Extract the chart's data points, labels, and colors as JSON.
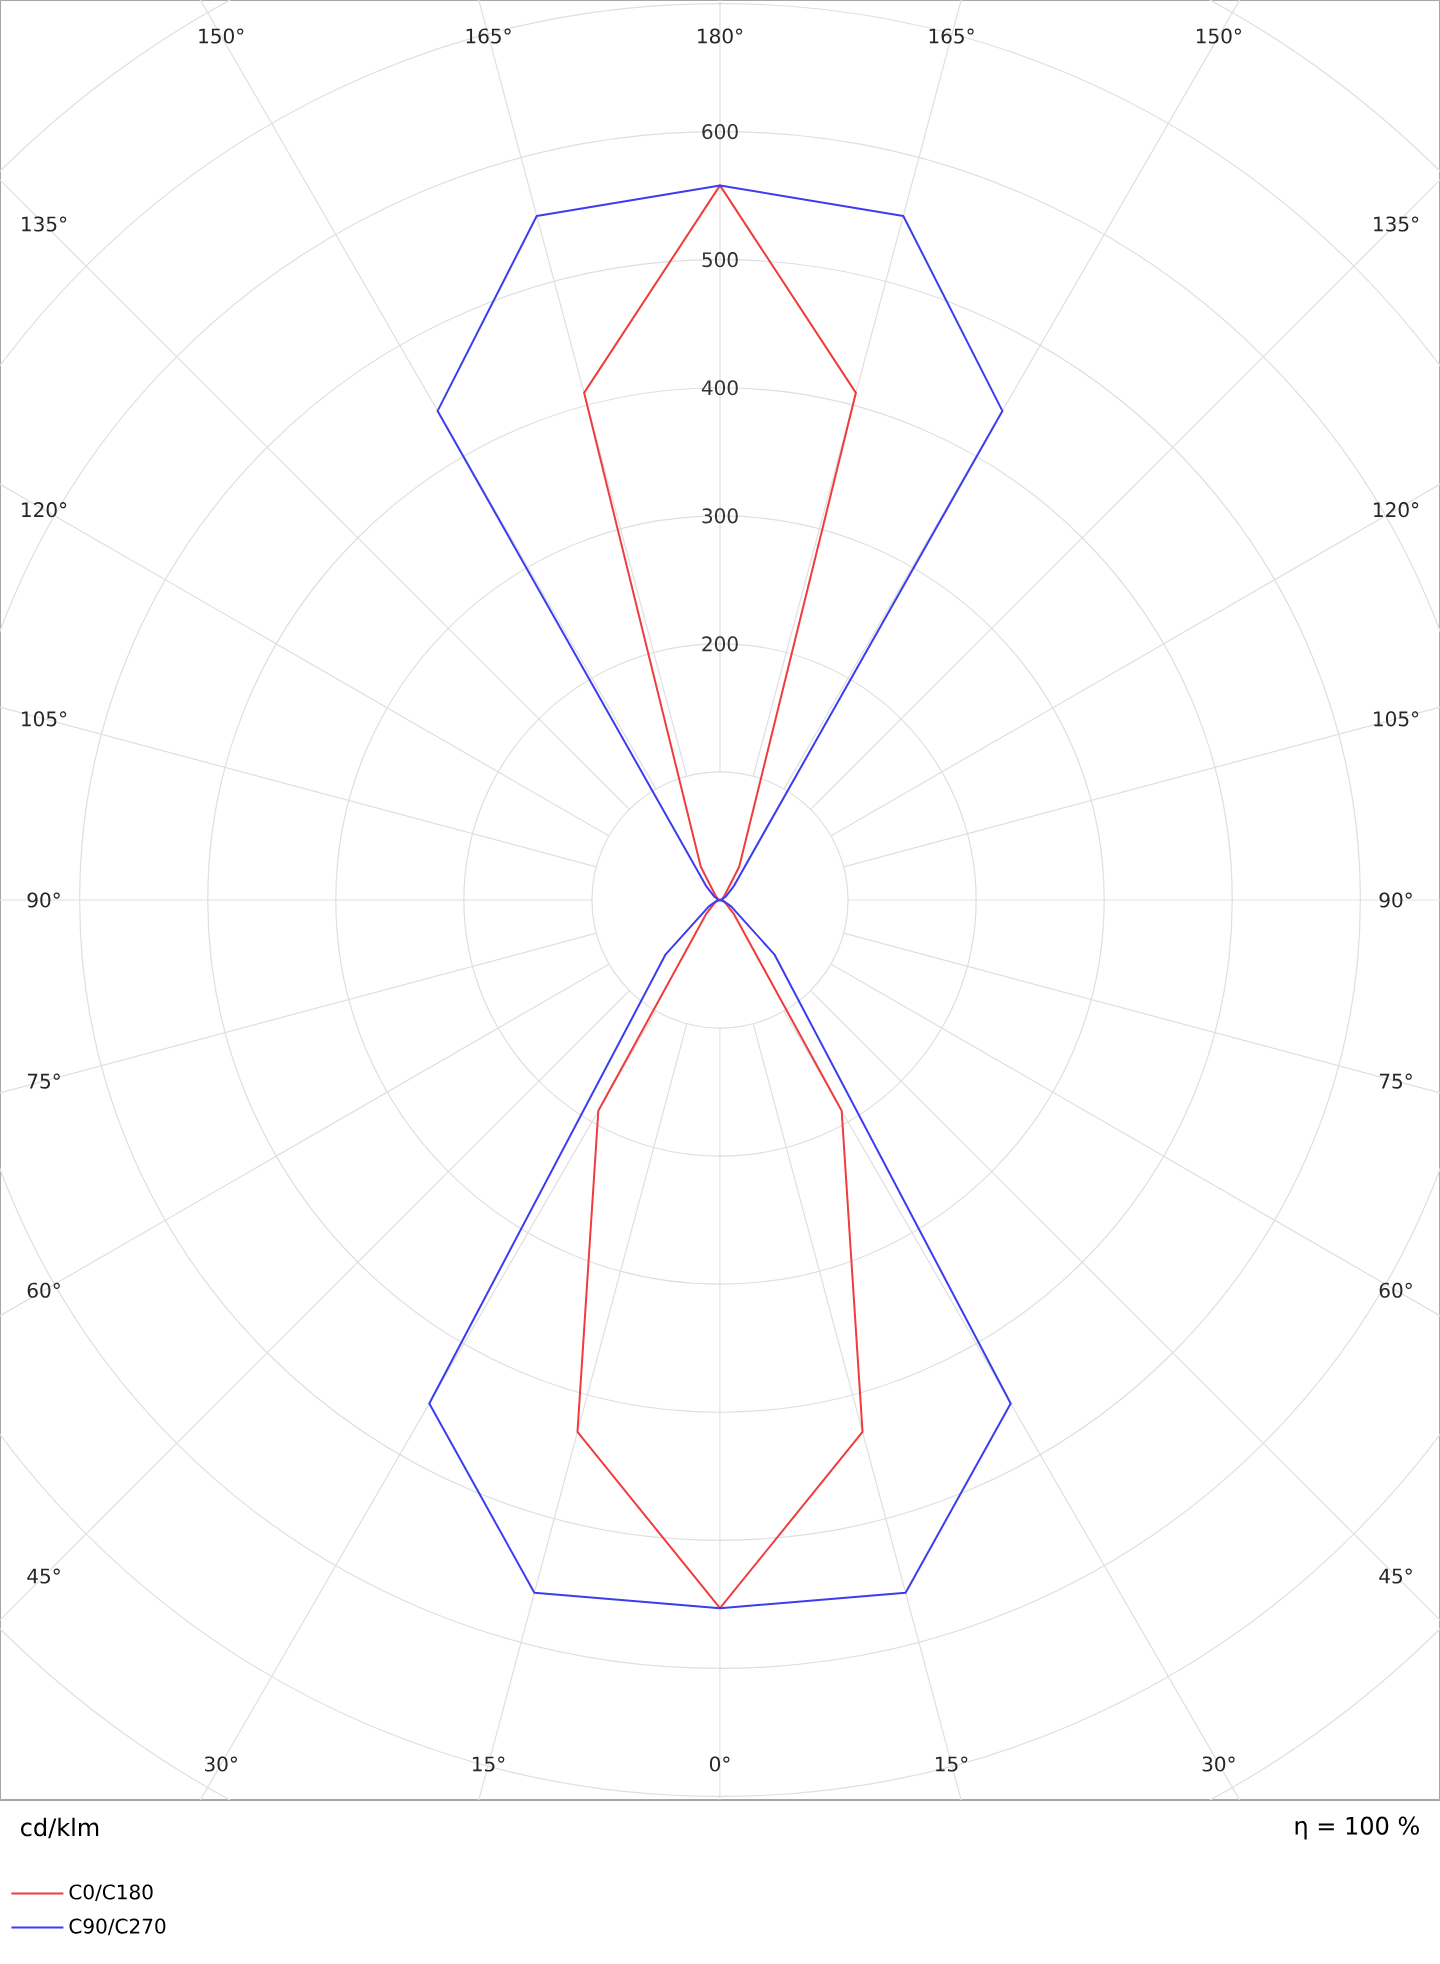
{
  "chart_data": {
    "type": "radar",
    "ylabel": "cd/klm",
    "annotations": [
      "η = 100 %"
    ],
    "categories": [
      "180°",
      "165°",
      "150°",
      "135°",
      "120°",
      "105°",
      "90°",
      "75°",
      "60°",
      "45°",
      "30°",
      "15°",
      "0°",
      "15°",
      "30°",
      "45°",
      "60°",
      "75°",
      "90°",
      "105°",
      "120°",
      "135°",
      "150°",
      "165°"
    ],
    "ylim": [
      0,
      900
    ],
    "yticks": [
      200,
      300,
      400,
      500,
      600
    ],
    "grid": true,
    "legend": "bottom left",
    "line_style": "solid",
    "marker": "none",
    "series": [
      {
        "name": "C0/C180",
        "color": "#f03c3c",
        "values": [
          558,
          410,
          30,
          5,
          2,
          1,
          0,
          2,
          5,
          15,
          190,
          430,
          553,
          430,
          190,
          15,
          5,
          2,
          0,
          1,
          2,
          5,
          30,
          410
        ]
      },
      {
        "name": "C90/C270",
        "color": "#3c3cf0",
        "values": [
          558,
          553,
          441,
          15,
          5,
          2,
          0,
          3,
          10,
          60,
          454,
          560,
          553,
          560,
          454,
          60,
          10,
          3,
          0,
          2,
          5,
          15,
          441,
          553
        ]
      }
    ]
  }
}
